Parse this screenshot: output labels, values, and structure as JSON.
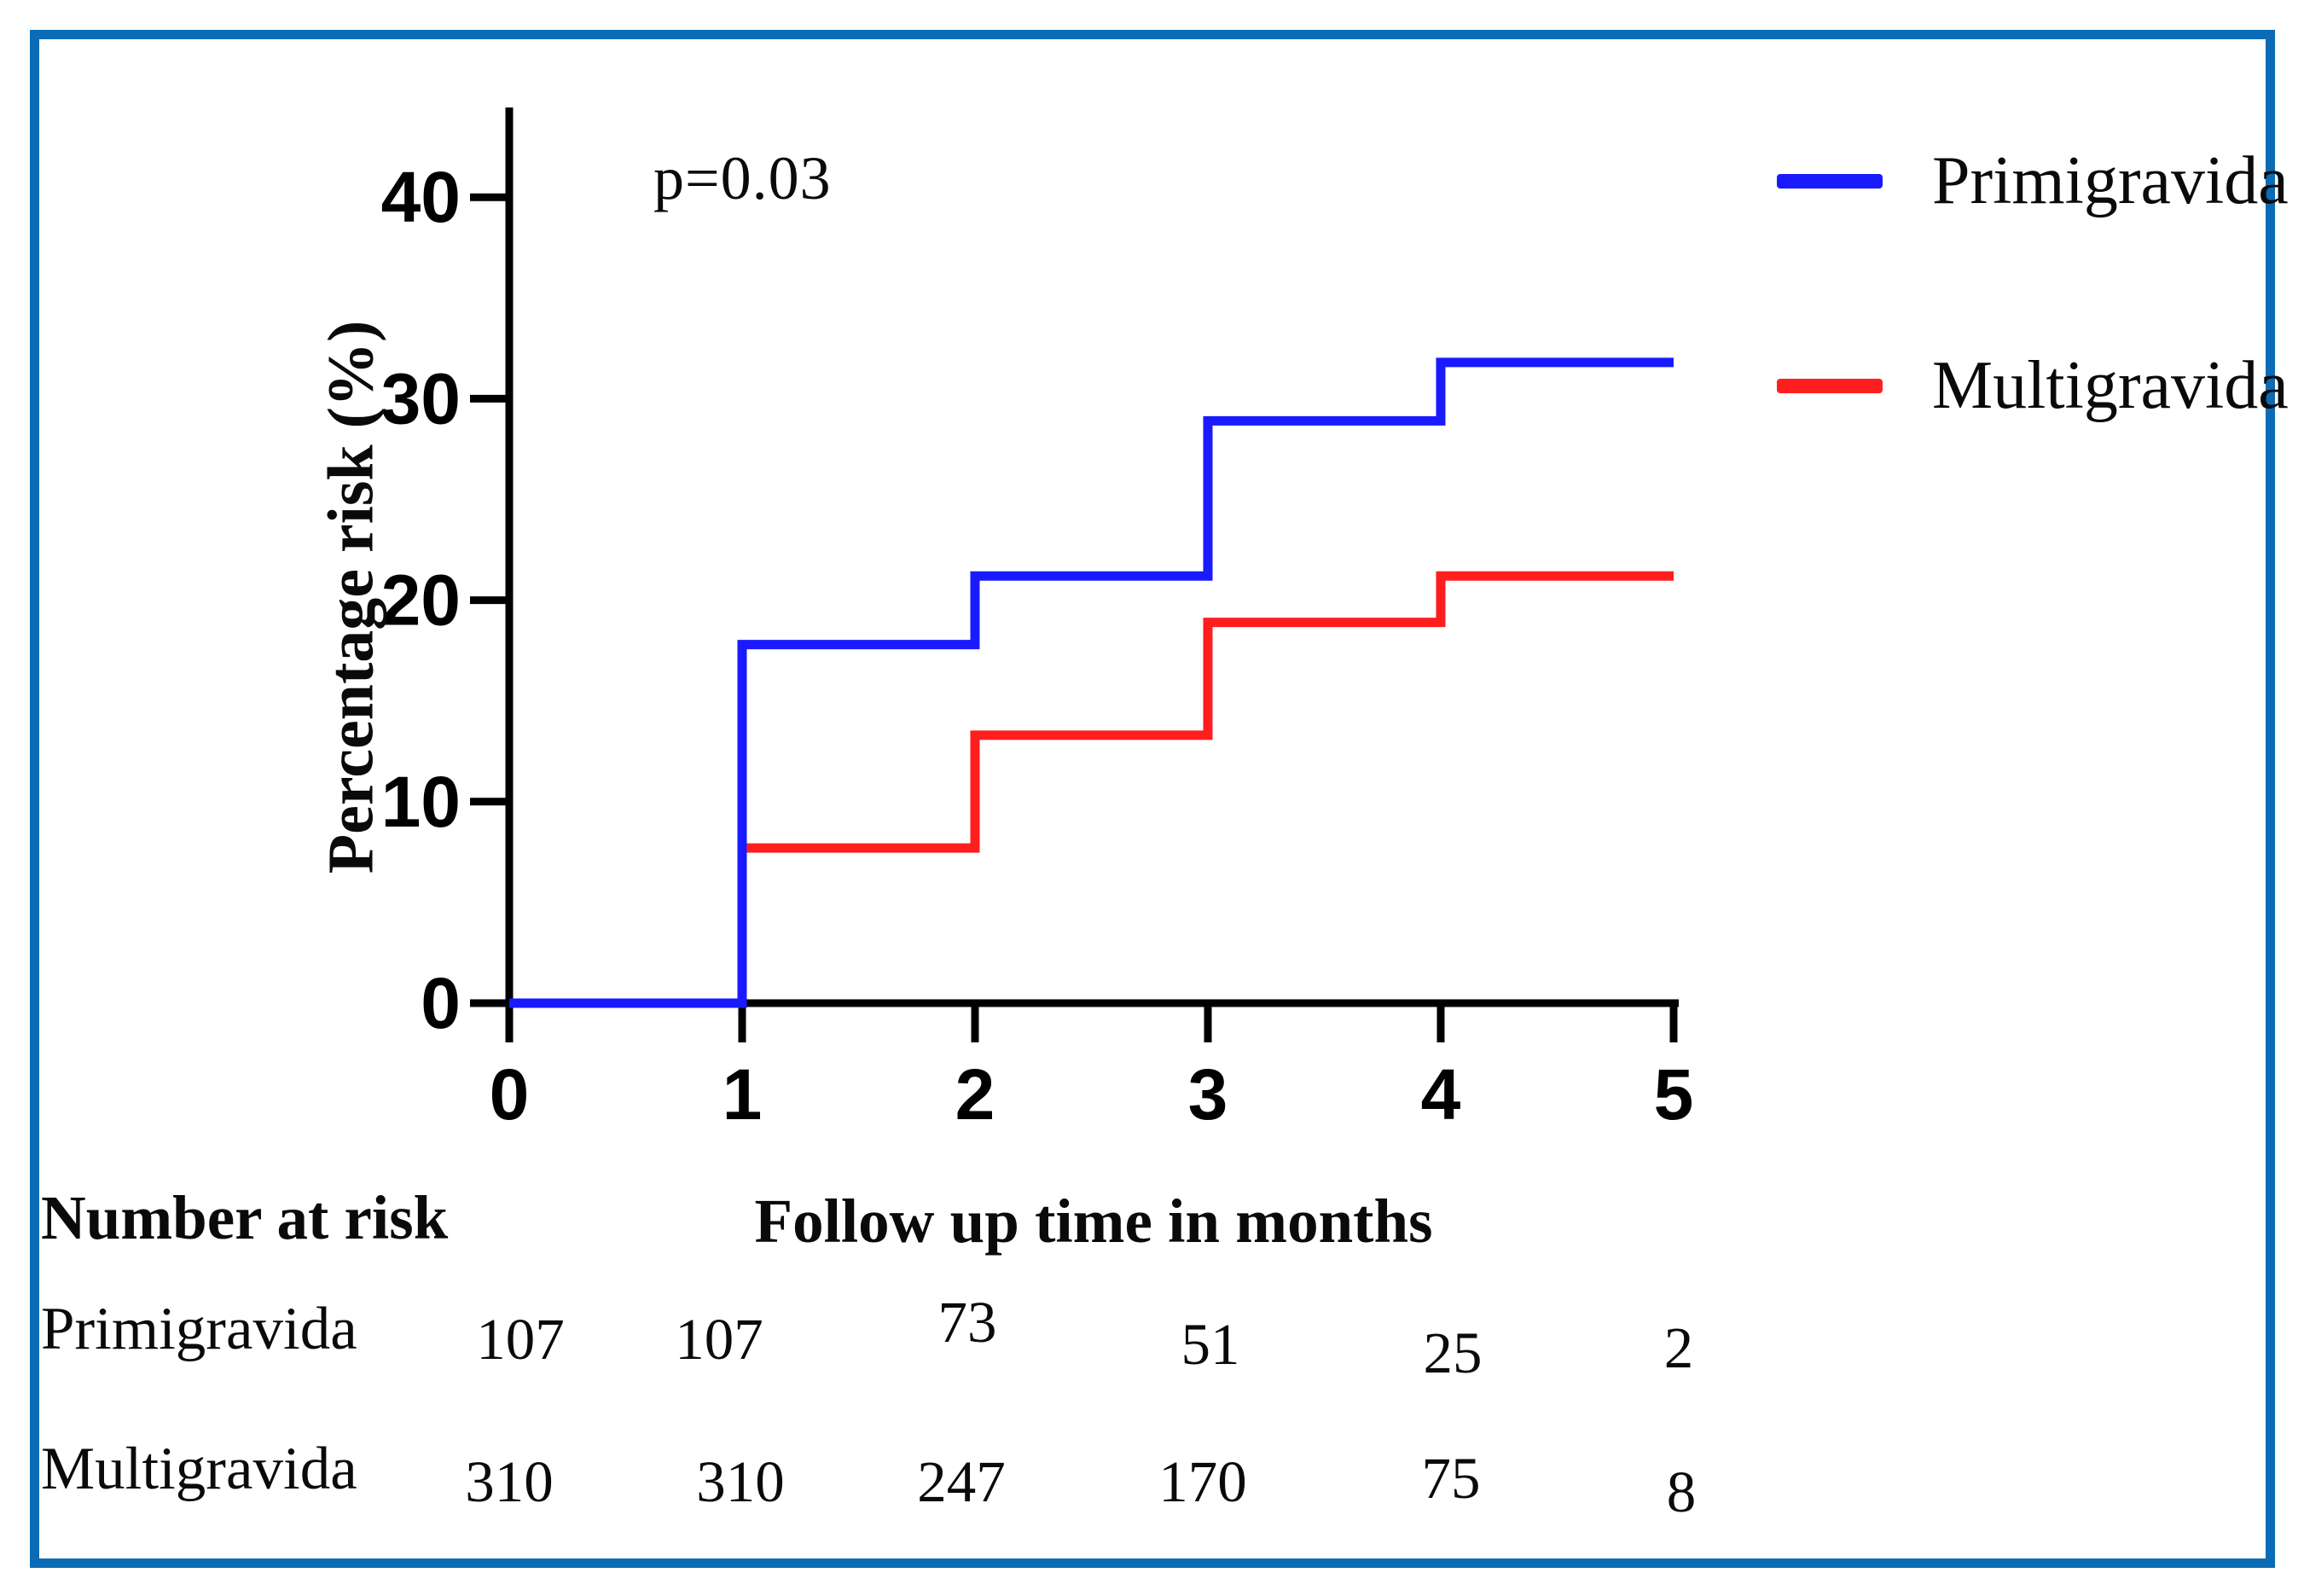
{
  "figure": {
    "border_color": "#0b6bb4",
    "axis_color": "#000000",
    "annotation_p_value": "p=0.03"
  },
  "chart_data": {
    "type": "line",
    "subtype": "step-kaplan-meier-cumulative-risk",
    "title": "",
    "annotation": "p=0.03",
    "xlabel": "Follow up time in months",
    "ylabel": "Percentage risk (%)",
    "xlim": [
      0,
      5
    ],
    "ylim": [
      0,
      45
    ],
    "x_ticks": [
      0,
      1,
      2,
      3,
      4,
      5
    ],
    "y_ticks": [
      0,
      10,
      20,
      30,
      40
    ],
    "grid": false,
    "legend_position": "top-right-outside",
    "series": [
      {
        "name": "Primigravida",
        "color": "#1a1aff",
        "x": [
          0,
          1,
          1,
          2,
          2,
          3,
          3,
          4,
          4,
          5
        ],
        "y": [
          0,
          0,
          17.8,
          17.8,
          21.2,
          21.2,
          28.9,
          28.9,
          31.8,
          31.8
        ]
      },
      {
        "name": "Multigravida",
        "color": "#ff1e1e",
        "x": [
          1,
          1,
          2,
          2,
          3,
          3,
          4,
          4,
          5
        ],
        "y": [
          0,
          7.7,
          7.7,
          13.3,
          13.3,
          18.9,
          18.9,
          21.2,
          21.2
        ]
      }
    ]
  },
  "at_risk": {
    "title": "Number at risk",
    "axis_title": "Follow up time in months",
    "rows": [
      {
        "label": "Primigravida",
        "values": [
          "107",
          "107",
          "73",
          "51",
          "25",
          "2"
        ]
      },
      {
        "label": "Multigravida",
        "values": [
          "310",
          "310",
          "247",
          "170",
          "75",
          "8"
        ]
      }
    ]
  }
}
